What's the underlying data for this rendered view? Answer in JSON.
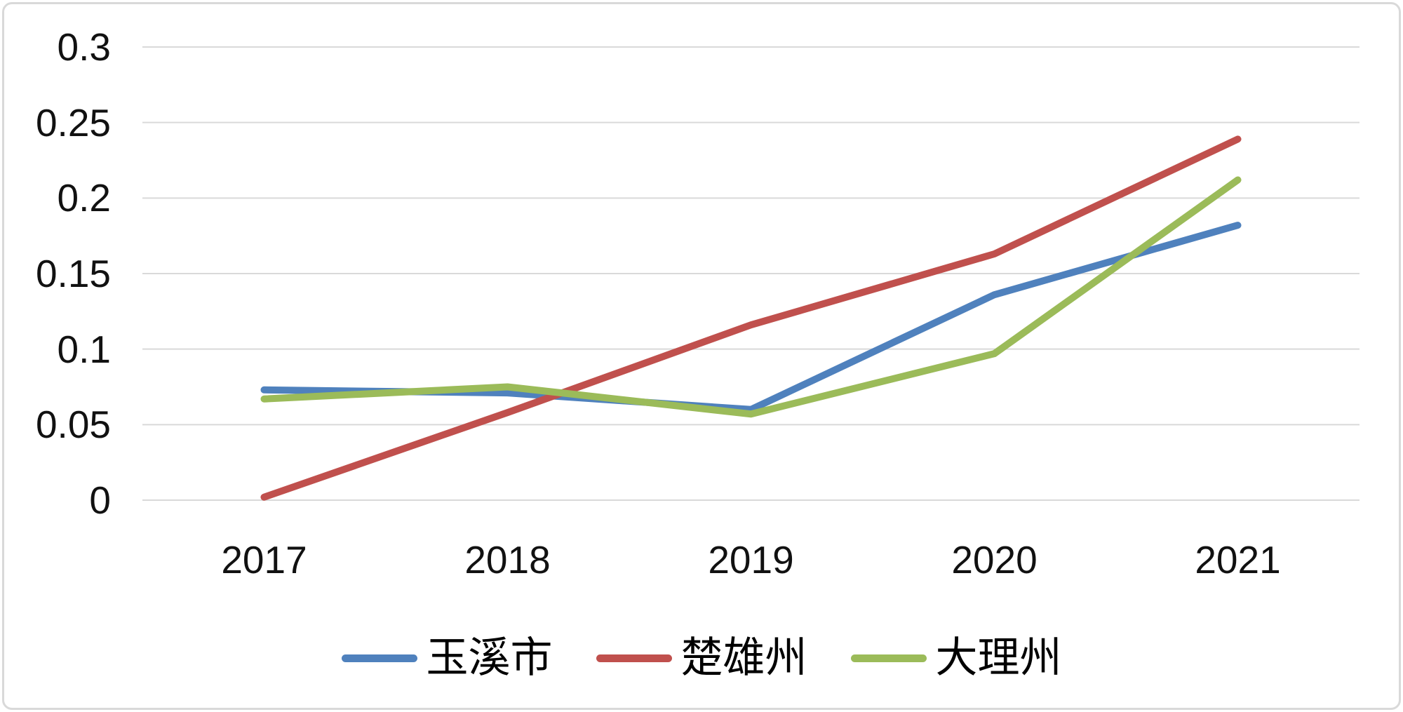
{
  "chart_data": {
    "type": "line",
    "x": [
      "2017",
      "2018",
      "2019",
      "2020",
      "2021"
    ],
    "series": [
      {
        "name": "玉溪市",
        "color": "#4F81BD",
        "values": [
          0.073,
          0.071,
          0.06,
          0.136,
          0.182
        ]
      },
      {
        "name": "楚雄州",
        "color": "#C0504D",
        "values": [
          0.002,
          0.058,
          0.116,
          0.163,
          0.239
        ]
      },
      {
        "name": "大理州",
        "color": "#9BBB59",
        "values": [
          0.067,
          0.075,
          0.057,
          0.097,
          0.212
        ]
      }
    ],
    "title": "",
    "xlabel": "",
    "ylabel": "",
    "ylim": [
      0,
      0.3
    ],
    "ytick_values": [
      0,
      0.05,
      0.1,
      0.15,
      0.2,
      0.25,
      0.3
    ],
    "yticks": [
      "0",
      "0.05",
      "0.1",
      "0.15",
      "0.2",
      "0.25",
      "0.3"
    ],
    "grid": true,
    "gridline_color": "#d9d9d9",
    "background_color": "#ffffff",
    "legend_position": "bottom"
  }
}
